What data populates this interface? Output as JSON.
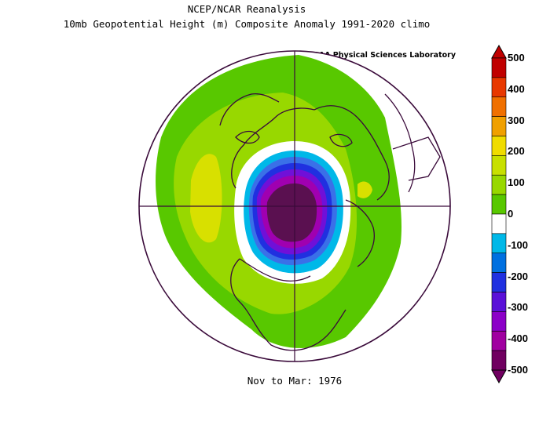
{
  "title": {
    "line1": "NCEP/NCAR Reanalysis",
    "line2": "10mb Geopotential Height (m) Composite Anomaly 1991-2020 climo"
  },
  "credit": "NOAA Physical Sciences Laboratory",
  "footer": "Nov to Mar: 1976",
  "colorbar": {
    "ticks": [
      "500",
      "400",
      "300",
      "200",
      "100",
      "0",
      "-100",
      "-200",
      "-300",
      "-400",
      "-500"
    ],
    "colors": [
      "#c00000",
      "#e83800",
      "#f07000",
      "#f0a000",
      "#f0dc00",
      "#c8e000",
      "#98d800",
      "#58c800",
      "#ffffff",
      "#00b8e8",
      "#0070e0",
      "#2030e0",
      "#5a10d8",
      "#8c00c8",
      "#a000a0",
      "#700060"
    ]
  },
  "map": {
    "projection": "north-polar-stereographic",
    "colors": {
      "positive_100": "#58c800",
      "positive_150": "#98d800",
      "positive_200": "#d8e000",
      "zero": "#ffffff",
      "neg_100": "#00b8e8",
      "neg_150": "#3a70e8",
      "neg_200": "#2030e0",
      "neg_300": "#7010d8",
      "neg_400": "#a000b0",
      "neg_500": "#5a1050",
      "coast": "#3a0a3a"
    }
  }
}
